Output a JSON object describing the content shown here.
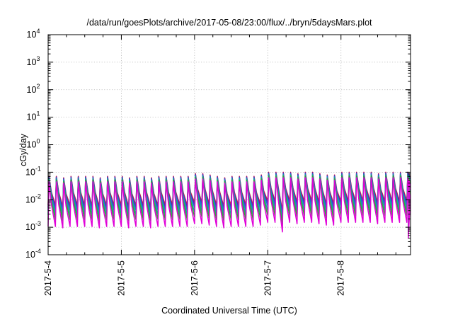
{
  "chart_data": {
    "type": "line",
    "title": "/data/run/goesPlots/archive/2017-05-08/23:00/flux/../bryn/5daysMars.plot",
    "xlabel": "Coordinated Universal Time (UTC)",
    "ylabel": "cGy/day",
    "yscale": "log",
    "ylim": [
      0.0001,
      10000
    ],
    "xlim": [
      0,
      4.95
    ],
    "x_unit": "days since 2017-05-04 00:00 UTC",
    "y_ticks": [
      {
        "base": "10",
        "exp": "-4"
      },
      {
        "base": "10",
        "exp": "-3"
      },
      {
        "base": "10",
        "exp": "-2"
      },
      {
        "base": "10",
        "exp": "-1"
      },
      {
        "base": "10",
        "exp": "0"
      },
      {
        "base": "10",
        "exp": "1"
      },
      {
        "base": "10",
        "exp": "2"
      },
      {
        "base": "10",
        "exp": "3"
      },
      {
        "base": "10",
        "exp": "4"
      }
    ],
    "x_ticks": [
      {
        "value": 0,
        "label": "2017-5-4"
      },
      {
        "value": 1,
        "label": "2017-5-5"
      },
      {
        "value": 2,
        "label": "2017-5-6"
      },
      {
        "value": 3,
        "label": "2017-5-7"
      },
      {
        "value": 4,
        "label": "2017-5-8"
      }
    ],
    "grid": true,
    "legend": "none",
    "pattern": {
      "cycles_per_day": 10,
      "peak_log": [
        -1.15,
        -1.15,
        -1.2,
        -1.15,
        -1.15,
        -1.15,
        -1.15,
        -1.2,
        -1.15,
        -1.15,
        -1.15,
        -1.2,
        -1.15,
        -1.15,
        -1.2,
        -1.15,
        -1.15,
        -1.15,
        -1.15,
        -1.15,
        -1.05,
        -1.05,
        -1.1,
        -1.15,
        -1.2,
        -1.15,
        -1.15,
        -1.15,
        -1.15,
        -1.1,
        -1.0,
        -1.0,
        -1.0,
        -1.0,
        -1.05,
        -1.0,
        -1.0,
        -1.05,
        -1.1,
        -1.1,
        -1.0,
        -1.0,
        -1.0,
        -1.0,
        -1.0,
        -1.05,
        -1.0,
        -1.0,
        -1.0,
        -1.0,
        -1.0,
        -1.05,
        -1.0,
        -1.0
      ]
    },
    "series": [
      {
        "color": "#d0203c",
        "offset": 0.0,
        "amp": 1.0
      },
      {
        "color": "#5a1fb2",
        "offset": 0.06,
        "amp": 1.05
      },
      {
        "color": "#2468d8",
        "offset": 0.14,
        "amp": 1.1
      },
      {
        "color": "#11a89a",
        "offset": 0.24,
        "amp": 1.2
      },
      {
        "color": "#2faa2f",
        "offset": 0.36,
        "amp": 1.3
      },
      {
        "color": "#e000d8",
        "offset": 0.5,
        "amp": 1.45
      }
    ]
  }
}
